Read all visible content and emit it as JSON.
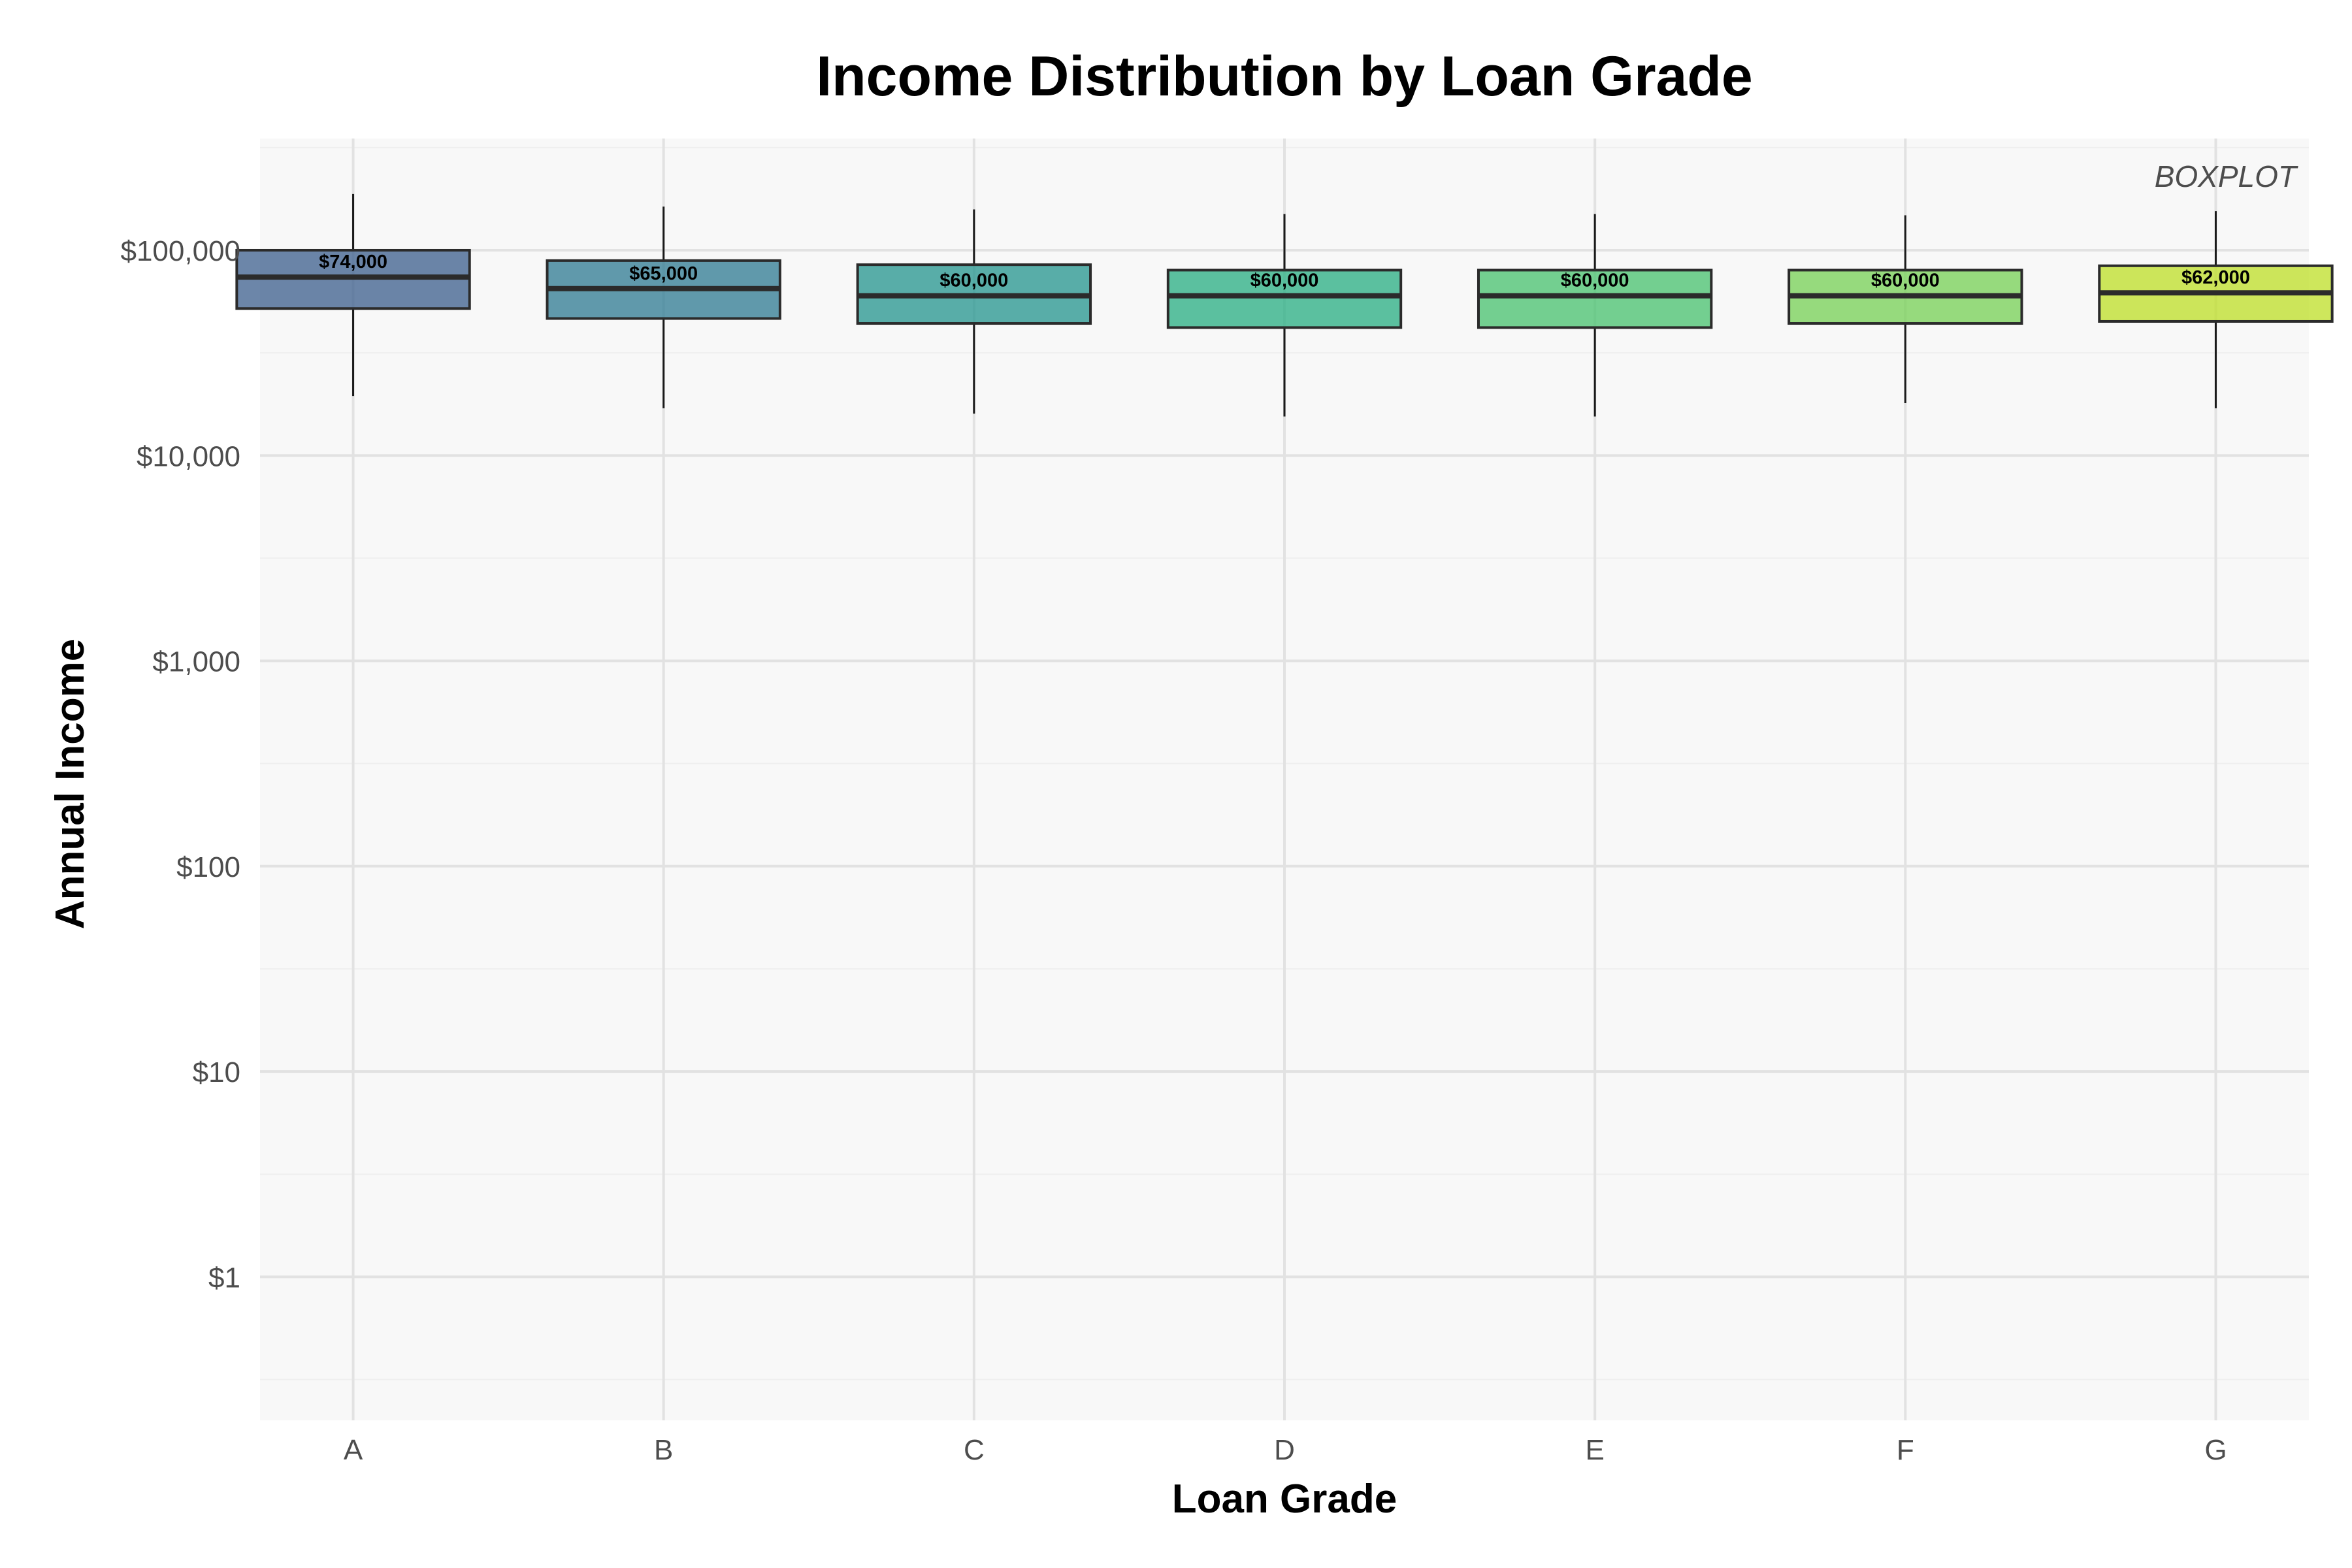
{
  "chart_data": {
    "type": "boxplot",
    "title": "Income Distribution by Loan Grade",
    "xlabel": "Loan Grade",
    "ylabel": "Annual Income",
    "annotation": "BOXPLOT",
    "y_scale": "log10",
    "ylim": [
      0.2,
      350000
    ],
    "y_ticks": [
      1,
      10,
      100,
      1000,
      10000,
      100000
    ],
    "y_tick_labels": [
      "$1",
      "$10",
      "$100",
      "$1,000",
      "$10,000",
      "$100,000"
    ],
    "grid": true,
    "categories": [
      "A",
      "B",
      "C",
      "D",
      "E",
      "F",
      "G"
    ],
    "boxes": [
      {
        "category": "A",
        "whisker_low": 19500,
        "q1": 52000,
        "median": 74000,
        "q3": 100000,
        "whisker_high": 188000,
        "label": "$74,000",
        "color": "#3b5d8c"
      },
      {
        "category": "B",
        "whisker_low": 17000,
        "q1": 46500,
        "median": 65000,
        "q3": 89000,
        "whisker_high": 163000,
        "label": "$65,000",
        "color": "#2e7a91"
      },
      {
        "category": "C",
        "whisker_low": 16000,
        "q1": 44000,
        "median": 60000,
        "q3": 85000,
        "whisker_high": 158000,
        "label": "$60,000",
        "color": "#23948e"
      },
      {
        "category": "D",
        "whisker_low": 15500,
        "q1": 42000,
        "median": 60000,
        "q3": 80000,
        "whisker_high": 150000,
        "label": "$60,000",
        "color": "#27ad81"
      },
      {
        "category": "E",
        "whisker_low": 15500,
        "q1": 42000,
        "median": 60000,
        "q3": 80000,
        "whisker_high": 150000,
        "label": "$60,000",
        "color": "#47c16e"
      },
      {
        "category": "F",
        "whisker_low": 18000,
        "q1": 44000,
        "median": 60000,
        "q3": 80000,
        "whisker_high": 148000,
        "label": "$60,000",
        "color": "#75d054"
      },
      {
        "category": "G",
        "whisker_low": 17000,
        "q1": 45000,
        "median": 62000,
        "q3": 84000,
        "whisker_high": 155000,
        "label": "$62,000",
        "color": "#bddf26"
      }
    ]
  }
}
